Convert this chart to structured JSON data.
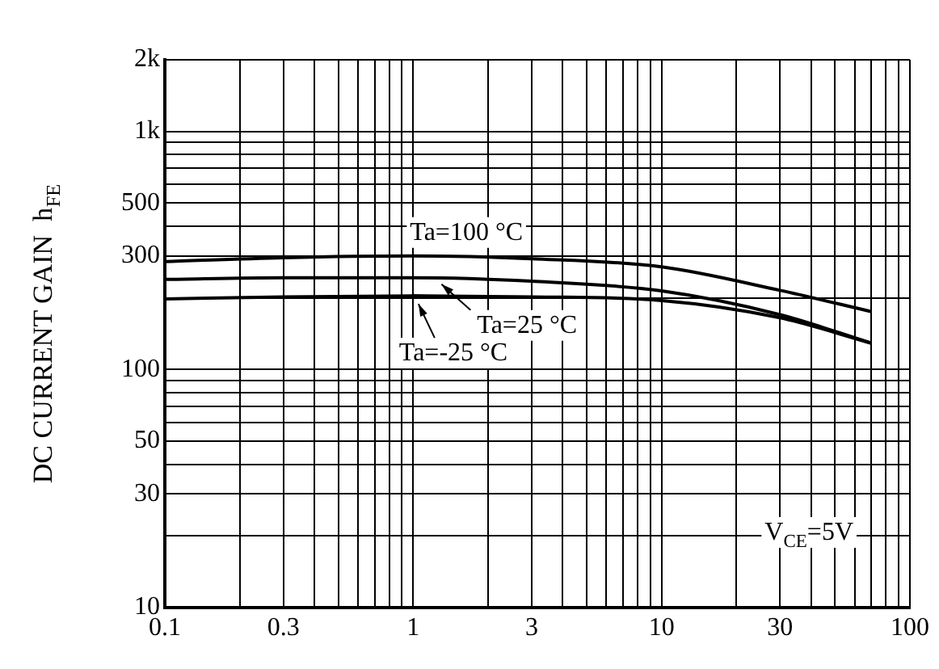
{
  "chart_data": {
    "type": "line",
    "ylabel": "DC CURRENT GAIN  h$_{FE}$",
    "x": [
      0.1,
      0.3,
      1,
      3,
      10,
      30,
      70
    ],
    "series": [
      {
        "color": "#000000",
        "values": [
          284,
          295,
          300,
          292,
          270,
          215,
          175
        ]
      },
      {
        "color": "#000000",
        "values": [
          239,
          243,
          243,
          235,
          214,
          170,
          129
        ]
      },
      {
        "color": "#000000",
        "values": [
          198,
          202,
          204,
          202,
          195,
          165,
          129
        ]
      }
    ],
    "annotations": [
      {
        "text": "Ta=100 °C",
        "x": 1,
        "y": 300
      },
      {
        "text": "Ta=25 °C",
        "x": 1.3,
        "y": 243
      },
      {
        "text": "Ta=-25 °C",
        "x": 1.05,
        "y": 204
      },
      "V$_{CE}$=5V"
    ],
    "log": "xy",
    "xlim": [
      0.1,
      100
    ],
    "ylim": [
      10,
      2000
    ],
    "xticks": [
      0.1,
      {
        "value": 0.2,
        "label": null
      },
      0.3,
      {
        "value": 0.4,
        "label": null
      },
      {
        "value": 0.5,
        "label": null
      },
      {
        "value": 0.6,
        "label": null
      },
      {
        "value": 0.7,
        "label": null
      },
      {
        "value": 0.8,
        "label": null
      },
      {
        "value": 0.9,
        "label": null
      },
      1,
      {
        "value": 2,
        "label": null
      },
      3,
      {
        "value": 4,
        "label": null
      },
      {
        "value": 5,
        "label": null
      },
      {
        "value": 6,
        "label": null
      },
      {
        "value": 7,
        "label": null
      },
      {
        "value": 8,
        "label": null
      },
      {
        "value": 9,
        "label": null
      },
      10,
      {
        "value": 20,
        "label": null
      },
      30,
      {
        "value": 40,
        "label": null
      },
      {
        "value": 50,
        "label": null
      },
      {
        "value": 60,
        "label": null
      },
      {
        "value": 70,
        "label": null
      },
      {
        "value": 80,
        "label": null
      },
      {
        "value": 90,
        "label": null
      },
      100
    ],
    "yticks": [
      10,
      {
        "value": 20,
        "label": null
      },
      30,
      {
        "value": 40,
        "label": null
      },
      50,
      {
        "value": 60,
        "label": null
      },
      {
        "value": 70,
        "label": null
      },
      {
        "value": 80,
        "label": null
      },
      {
        "value": 90,
        "label": null
      },
      100,
      {
        "value": 200,
        "label": null
      },
      300,
      {
        "value": 400,
        "label": null
      },
      500,
      {
        "value": 600,
        "label": null
      },
      {
        "value": 700,
        "label": null
      },
      {
        "value": 800,
        "label": null
      },
      {
        "value": 900,
        "label": null
      },
      {
        "value": 1000,
        "label": "1k"
      },
      {
        "value": 2000,
        "label": "2k"
      }
    ],
    "grid": true,
    "legend": false,
    "marker": "none",
    "line_style": "solid"
  }
}
